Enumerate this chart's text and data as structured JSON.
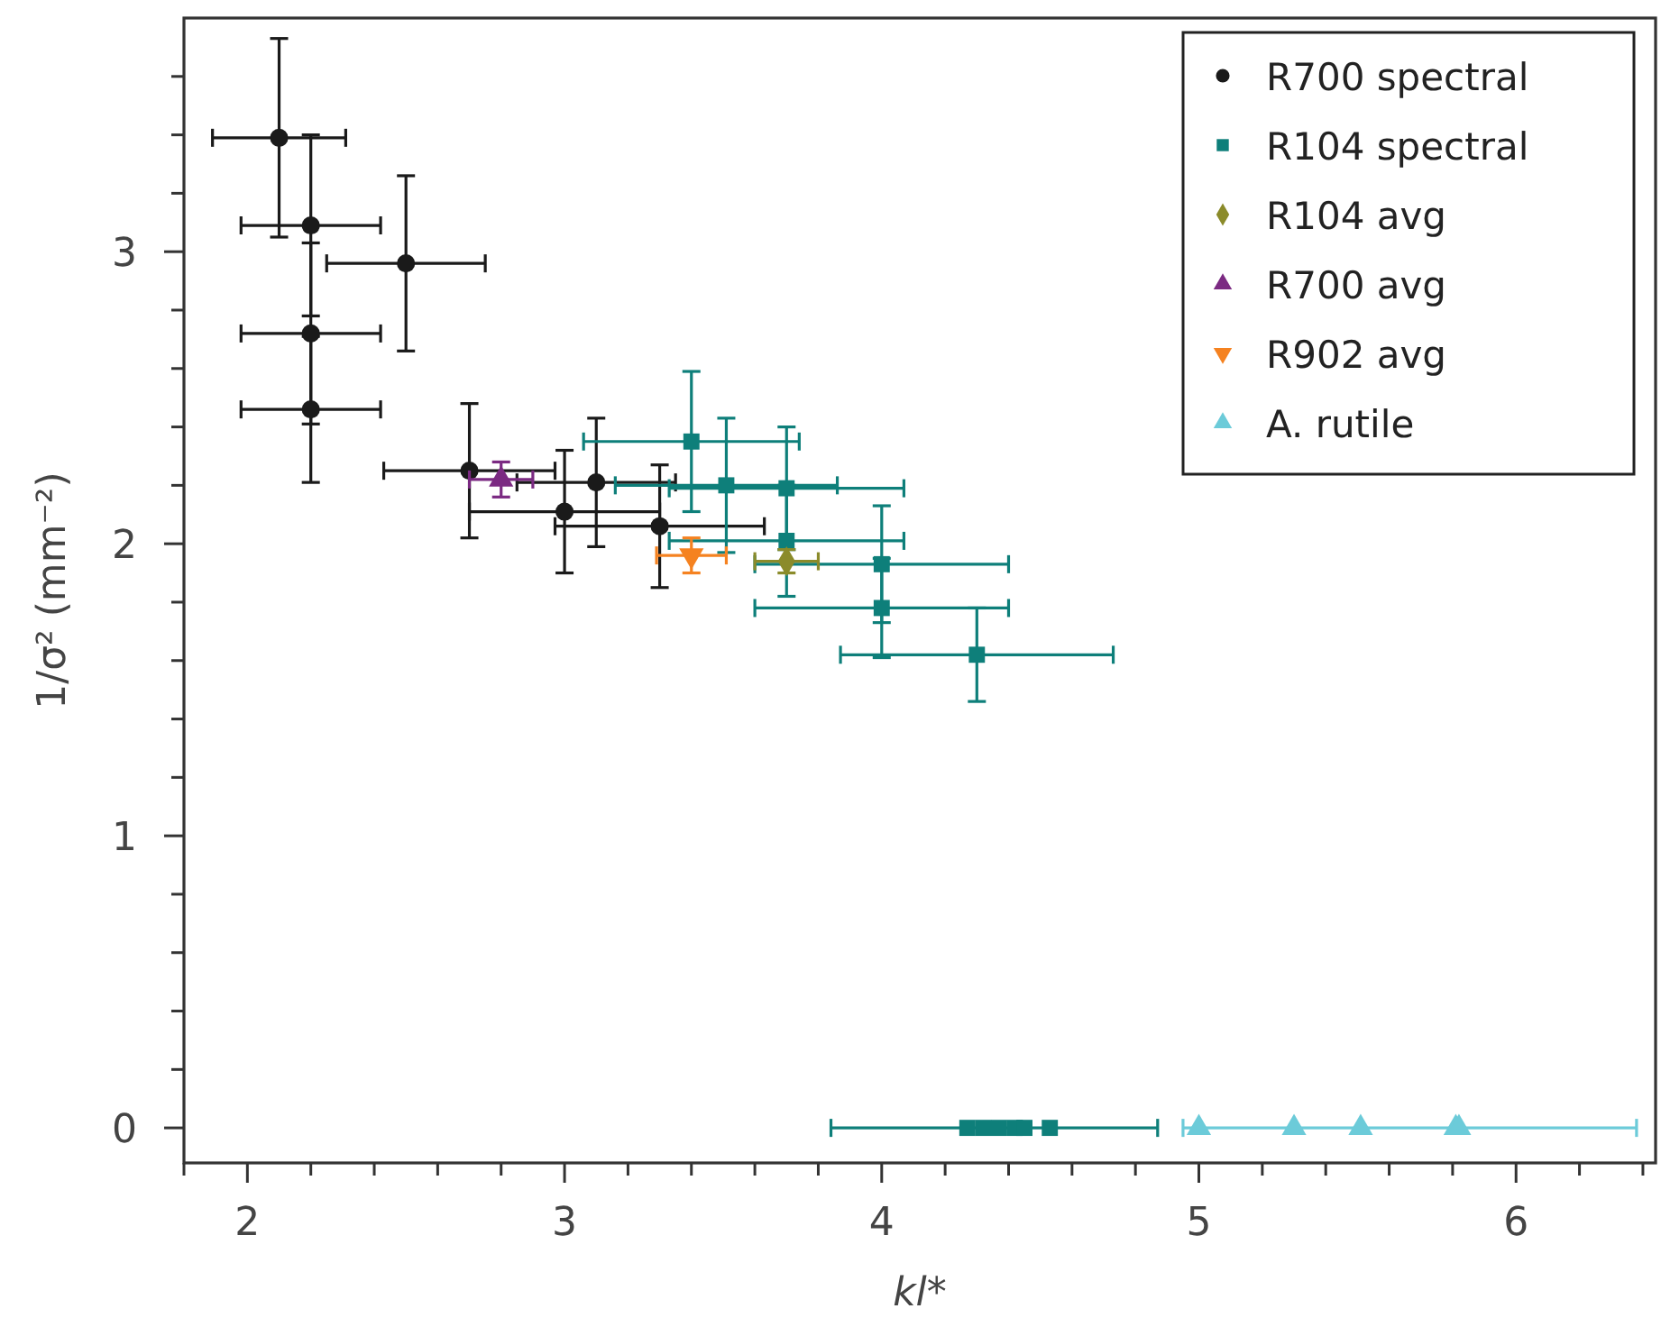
{
  "chart_data": {
    "type": "scatter",
    "xlabel": "kl*",
    "ylabel": "1/σ² (mm⁻²)",
    "xlim": [
      1.8,
      6.44
    ],
    "ylim": [
      -0.12,
      3.8
    ],
    "xticks": [
      {
        "value": 1.8,
        "label": null
      },
      2,
      {
        "value": 2.2,
        "label": null
      },
      {
        "value": 2.4,
        "label": null
      },
      {
        "value": 2.6,
        "label": null
      },
      {
        "value": 2.8,
        "label": null
      },
      3,
      {
        "value": 3.2,
        "label": null
      },
      {
        "value": 3.4,
        "label": null
      },
      {
        "value": 3.6,
        "label": null
      },
      {
        "value": 3.8,
        "label": null
      },
      4,
      {
        "value": 4.2,
        "label": null
      },
      {
        "value": 4.4,
        "label": null
      },
      {
        "value": 4.6,
        "label": null
      },
      {
        "value": 4.8,
        "label": null
      },
      5,
      {
        "value": 5.2,
        "label": null
      },
      {
        "value": 5.4,
        "label": null
      },
      {
        "value": 5.6,
        "label": null
      },
      {
        "value": 5.8,
        "label": null
      },
      6,
      {
        "value": 6.2,
        "label": null
      },
      {
        "value": 6.4,
        "label": null
      }
    ],
    "yticks": [
      0,
      {
        "value": 0.2,
        "label": null
      },
      {
        "value": 0.4,
        "label": null
      },
      {
        "value": 0.6,
        "label": null
      },
      {
        "value": 0.8,
        "label": null
      },
      1,
      {
        "value": 1.2,
        "label": null
      },
      {
        "value": 1.4,
        "label": null
      },
      {
        "value": 1.6,
        "label": null
      },
      {
        "value": 1.8,
        "label": null
      },
      2,
      {
        "value": 2.2,
        "label": null
      },
      {
        "value": 2.4,
        "label": null
      },
      {
        "value": 2.6,
        "label": null
      },
      {
        "value": 2.8,
        "label": null
      },
      3,
      {
        "value": 3.2,
        "label": null
      },
      {
        "value": 3.4,
        "label": null
      },
      {
        "value": 3.6,
        "label": null
      }
    ],
    "legend": "top right",
    "series": [
      {
        "name": "R700 spectral",
        "color": "#1a1a1a",
        "marker": "circle",
        "x": [
          2.1,
          2.2,
          2.5,
          2.2,
          2.2,
          2.7,
          3.1,
          3.0,
          3.3
        ],
        "values": [
          3.39,
          3.09,
          2.96,
          2.72,
          2.46,
          2.25,
          2.21,
          2.11,
          2.06
        ],
        "errors": [
          0.34,
          0.31,
          0.3,
          0.31,
          0.25,
          0.23,
          0.22,
          0.21,
          0.21
        ],
        "xerrors": [
          0.21,
          0.22,
          0.25,
          0.22,
          0.22,
          0.27,
          0.25,
          0.3,
          0.33
        ]
      },
      {
        "name": "R104 spectral",
        "color": "#0e7f7a",
        "marker": "square",
        "x": [
          3.4,
          3.51,
          3.7,
          3.7,
          4.0,
          4.0,
          4.3,
          4.27,
          4.32,
          4.37,
          4.42,
          4.45,
          4.53
        ],
        "values": [
          2.35,
          2.2,
          2.19,
          2.01,
          1.93,
          1.78,
          1.62,
          0,
          0,
          0,
          0,
          0,
          0
        ],
        "errors": [
          0.24,
          0.23,
          0.21,
          0.19,
          0.2,
          0.17,
          0.16,
          null,
          null,
          null,
          null,
          null,
          null
        ],
        "xerrors": [
          0.34,
          0.35,
          0.37,
          0.37,
          0.4,
          0.4,
          0.43,
          null,
          null,
          null,
          null,
          null,
          [
            3.84,
            4.87
          ]
        ]
      },
      {
        "name": "R104 avg",
        "color": "#8b8b2a",
        "marker": "diamond",
        "x": [
          3.7
        ],
        "values": [
          1.94
        ],
        "errors": [
          0.04
        ],
        "xerrors": [
          0.1
        ]
      },
      {
        "name": "R700 avg",
        "color": "#7b2a82",
        "marker": "triangle",
        "x": [
          2.8
        ],
        "values": [
          2.22
        ],
        "errors": [
          0.06
        ],
        "xerrors": [
          0.1
        ]
      },
      {
        "name": "R902 avg",
        "color": "#f58220",
        "marker": "triangle-down",
        "x": [
          3.4
        ],
        "values": [
          1.96
        ],
        "errors": [
          0.06
        ],
        "xerrors": [
          0.11
        ]
      },
      {
        "name": "A. rutile",
        "color": "#6ccbd9",
        "marker": "triangle",
        "x": [
          5.0,
          5.3,
          5.51,
          5.81,
          5.82
        ],
        "values": [
          0,
          0,
          0,
          0,
          0
        ],
        "errors": [
          null,
          null,
          null,
          null,
          null
        ],
        "xerrors": [
          null,
          null,
          null,
          [
            4.95,
            6.38
          ],
          null
        ]
      }
    ]
  }
}
